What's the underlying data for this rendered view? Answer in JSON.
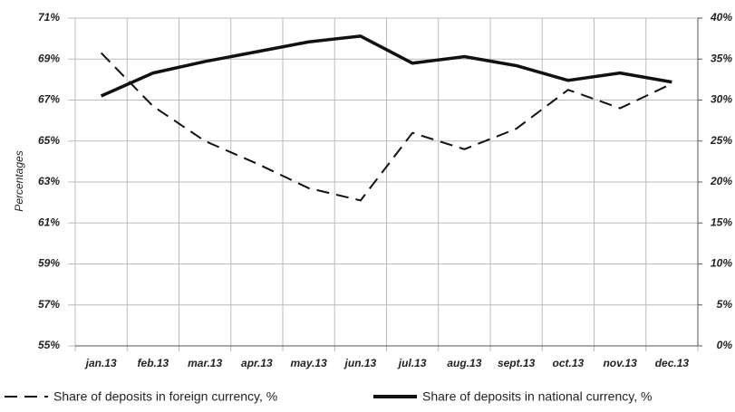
{
  "chart_data": {
    "type": "line",
    "y_label": "Percentages",
    "categories": [
      "jan.13",
      "feb.13",
      "mar.13",
      "apr.13",
      "may.13",
      "jun.13",
      "jul.13",
      "aug.13",
      "sept.13",
      "oct.13",
      "nov.13",
      "dec.13"
    ],
    "series": [
      {
        "name": "Share of deposits in foreign currency, %",
        "color": "#111111",
        "dash": true,
        "axis": "y",
        "values": [
          69.3,
          66.7,
          65.0,
          63.9,
          62.7,
          62.1,
          65.4,
          64.6,
          65.6,
          67.5,
          66.6,
          67.8
        ]
      },
      {
        "name": "Share of deposits in national currency, %",
        "color": "#111111",
        "dash": false,
        "axis": "y2",
        "values": [
          30.5,
          33.3,
          34.7,
          35.9,
          37.1,
          37.8,
          34.5,
          35.3,
          34.2,
          32.4,
          33.3,
          32.2
        ]
      }
    ],
    "ylim": [
      55,
      71
    ],
    "yticks": [
      {
        "value": 55,
        "label": "55%"
      },
      {
        "value": 57,
        "label": "57%"
      },
      {
        "value": 59,
        "label": "59%"
      },
      {
        "value": 61,
        "label": "61%"
      },
      {
        "value": 63,
        "label": "63%"
      },
      {
        "value": 65,
        "label": "65%"
      },
      {
        "value": 67,
        "label": "67%"
      },
      {
        "value": 69,
        "label": "69%"
      },
      {
        "value": 71,
        "label": "71%"
      }
    ],
    "y2lim": [
      0,
      40
    ],
    "y2ticks": [
      {
        "value": 0,
        "label": "0%"
      },
      {
        "value": 5,
        "label": "5%"
      },
      {
        "value": 10,
        "label": "10%"
      },
      {
        "value": 15,
        "label": "15%"
      },
      {
        "value": 20,
        "label": "20%"
      },
      {
        "value": 25,
        "label": "25%"
      },
      {
        "value": 30,
        "label": "30%"
      },
      {
        "value": 35,
        "label": "35%"
      },
      {
        "value": 40,
        "label": "40%"
      }
    ],
    "grid": true
  }
}
